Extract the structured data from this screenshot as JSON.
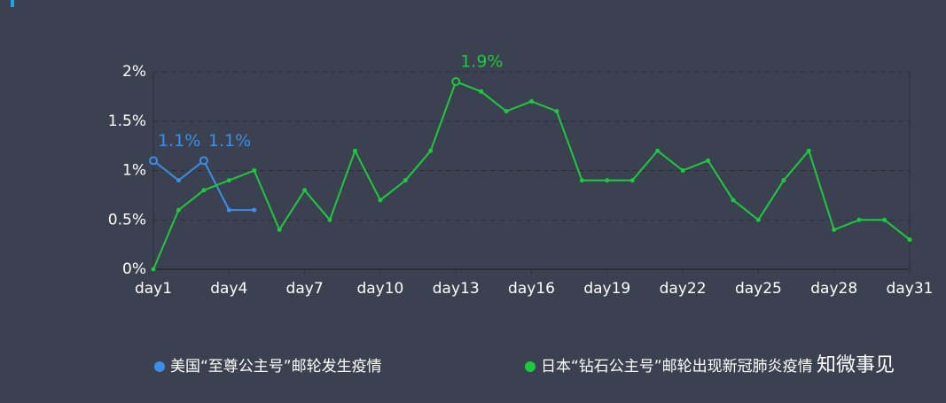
{
  "chart_data": {
    "type": "line",
    "categories": [
      "day1",
      null,
      null,
      "day4",
      null,
      null,
      "day7",
      null,
      null,
      "day10",
      null,
      null,
      "day13",
      null,
      null,
      "day16",
      null,
      null,
      "day19",
      null,
      null,
      "day22",
      null,
      null,
      "day25",
      null,
      null,
      "day28",
      null,
      null,
      "day31"
    ],
    "series": [
      {
        "name": "美国“至尊公主号”邮轮发生疫情",
        "color": "#3d8ee8",
        "values": [
          1.1,
          0.9,
          1.1,
          0.6,
          0.6,
          null,
          null,
          null,
          null,
          null,
          null,
          null,
          null,
          null,
          null,
          null,
          null,
          null,
          null,
          null,
          null,
          null,
          null,
          null,
          null,
          null,
          null,
          null,
          null,
          null,
          null
        ],
        "value_labels": [
          "1.1%",
          null,
          "1.1%",
          null,
          null,
          null,
          null,
          null,
          null,
          null,
          null,
          null,
          null,
          null,
          null,
          null,
          null,
          null,
          null,
          null,
          null,
          null,
          null,
          null,
          null,
          null,
          null,
          null,
          null,
          null,
          null
        ]
      },
      {
        "name": "日本“钻石公主号”邮轮出现新冠肺炎疫情",
        "color": "#1dc93e",
        "values": [
          0,
          0.6,
          0.8,
          0.9,
          1.0,
          0.4,
          0.8,
          0.5,
          1.2,
          0.7,
          0.9,
          1.2,
          1.9,
          1.8,
          1.6,
          1.7,
          1.6,
          0.9,
          0.9,
          0.9,
          1.2,
          1.0,
          1.1,
          0.7,
          0.5,
          0.9,
          1.2,
          0.4,
          0.5,
          0.5,
          0.3
        ],
        "value_labels": [
          null,
          null,
          null,
          null,
          null,
          null,
          null,
          null,
          null,
          null,
          null,
          null,
          "1.9%",
          null,
          null,
          null,
          null,
          null,
          null,
          null,
          null,
          null,
          null,
          null,
          null,
          null,
          null,
          null,
          null,
          null,
          null
        ]
      }
    ],
    "ylim": [
      0,
      2
    ],
    "yticks": [
      {
        "value": 0,
        "label": "0%"
      },
      {
        "value": 0.5,
        "label": "0.5%"
      },
      {
        "value": 1,
        "label": "1%"
      },
      {
        "value": 1.5,
        "label": "1.5%"
      },
      {
        "value": 2,
        "label": "2%"
      }
    ],
    "grid": true,
    "legend": "bottom",
    "watermark": "知微事见"
  }
}
